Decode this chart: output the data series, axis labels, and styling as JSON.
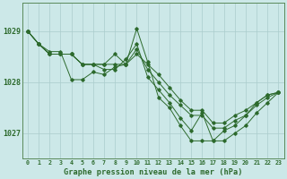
{
  "background_color": "#cce8e8",
  "plot_bg_color": "#cce8e8",
  "line_color": "#2d6a2d",
  "grid_color": "#aacccc",
  "title": "Graphe pression niveau de la mer (hPa)",
  "ylabel_values": [
    1027,
    1028,
    1029
  ],
  "xlim": [
    -0.5,
    23.5
  ],
  "ylim": [
    1026.5,
    1029.55
  ],
  "series": [
    [
      1029.0,
      1028.75,
      1028.6,
      1028.6,
      1028.05,
      1028.05,
      1028.2,
      1028.15,
      1028.3,
      1028.35,
      1029.05,
      1028.4,
      1027.7,
      1027.5,
      1027.15,
      1026.85,
      1026.85,
      1026.85,
      1027.05,
      1027.15,
      1027.35,
      1027.6,
      1027.75,
      1027.8
    ],
    [
      1029.0,
      1028.75,
      1028.55,
      1028.55,
      1028.55,
      1028.35,
      1028.35,
      1028.35,
      1028.35,
      1028.35,
      1028.55,
      1028.35,
      1028.15,
      1027.9,
      1027.65,
      1027.45,
      1027.45,
      1027.2,
      1027.2,
      1027.35,
      1027.45,
      1027.6,
      1027.75,
      1027.8
    ],
    [
      1029.0,
      1028.75,
      1028.55,
      1028.55,
      1028.55,
      1028.35,
      1028.35,
      1028.35,
      1028.55,
      1028.35,
      1028.65,
      1028.25,
      1028.0,
      1027.75,
      1027.55,
      1027.35,
      1027.35,
      1027.1,
      1027.1,
      1027.25,
      1027.35,
      1027.55,
      1027.7,
      1027.8
    ],
    [
      1029.0,
      1028.75,
      1028.55,
      1028.55,
      1028.55,
      1028.35,
      1028.35,
      1028.25,
      1028.25,
      1028.45,
      1028.75,
      1028.1,
      1027.85,
      1027.6,
      1027.3,
      1027.05,
      1027.4,
      1026.85,
      1026.85,
      1027.0,
      1027.15,
      1027.4,
      1027.6,
      1027.8
    ]
  ],
  "xtick_labels": [
    "0",
    "1",
    "2",
    "3",
    "4",
    "5",
    "6",
    "7",
    "8",
    "9",
    "10",
    "11",
    "12",
    "13",
    "14",
    "15",
    "16",
    "17",
    "18",
    "19",
    "20",
    "21",
    "22",
    "23"
  ]
}
